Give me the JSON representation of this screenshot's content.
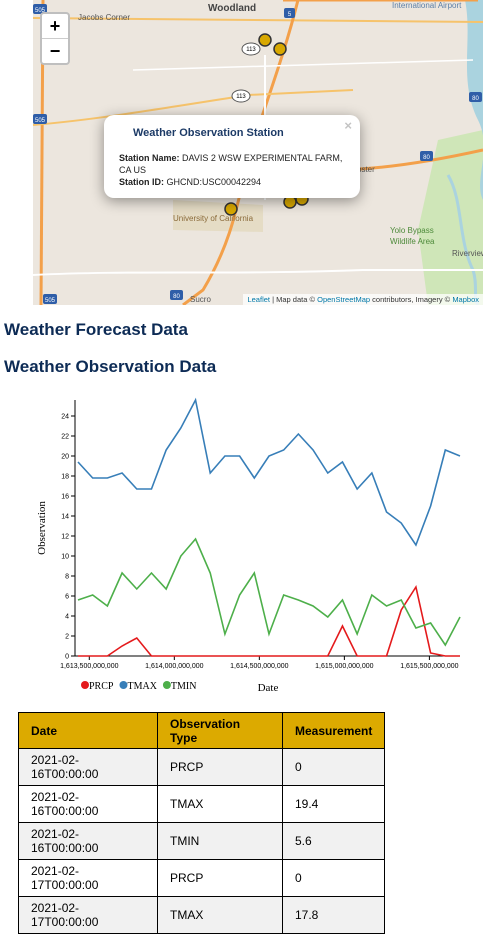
{
  "map": {
    "zoom_in": "+",
    "zoom_out": "−",
    "labels": {
      "woodland": "Woodland",
      "jacobs_corner": "Jacobs Corner",
      "airport": "International Airport",
      "webster": "bster",
      "university": "University of California",
      "yolo1": "Yolo Bypass",
      "yolo2": "Wildlife Area",
      "riverview": "Riverview",
      "sucro": "Sucro",
      "shield_113a": "113",
      "shield_113b": "113",
      "shield_5": "5",
      "shield_80a": "80",
      "shield_80b": "80",
      "shield_80c": "80",
      "shield_505a": "505",
      "shield_505b": "505",
      "shield_505c": "505"
    },
    "popup": {
      "close": "×",
      "title": "Weather Observation Station",
      "station_name_label": "Station Name:",
      "station_name": "DAVIS 2 WSW EXPERIMENTAL FARM, CA US",
      "station_id_label": "Station ID:",
      "station_id": "GHCND:USC00042294"
    },
    "attribution": {
      "leaflet": "Leaflet",
      "text1": "| Map data ©",
      "osm": "OpenStreetMap",
      "text2": "contributors, Imagery ©",
      "mapbox": "Mapbox"
    }
  },
  "headings": {
    "forecast": "Weather Forecast Data",
    "observation": "Weather Observation Data"
  },
  "chart_data": {
    "type": "line",
    "x_label": "Date",
    "y_label": "Observation",
    "x": [
      1613433600000,
      1613520000000,
      1613606400000,
      1613692800000,
      1613779200000,
      1613865600000,
      1613952000000,
      1614038400000,
      1614124800000,
      1614211200000,
      1614297600000,
      1614384000000,
      1614470400000,
      1614556800000,
      1614643200000,
      1614729600000,
      1614816000000,
      1614902400000,
      1614988800000,
      1615075200000,
      1615161600000,
      1615248000000,
      1615334400000,
      1615420800000,
      1615507200000,
      1615593600000,
      1615680000000
    ],
    "xlim": [
      1613433600000,
      1615680000000
    ],
    "xticks": [
      {
        "value": 1613500000000,
        "label": "1,613,500,000,000"
      },
      {
        "value": 1614000000000,
        "label": "1,614,000,000,000"
      },
      {
        "value": 1614500000000,
        "label": "1,614,500,000,000"
      },
      {
        "value": 1615000000000,
        "label": "1,615,000,000,000"
      },
      {
        "value": 1615500000000,
        "label": "1,615,500,000,000"
      }
    ],
    "ylim": [
      0,
      25.6
    ],
    "yticks": [
      0,
      2,
      4,
      6,
      8,
      10,
      12,
      14,
      16,
      18,
      20,
      22,
      24
    ],
    "series": [
      {
        "name": "PRCP",
        "color": "#e41a1c",
        "values": [
          0,
          0,
          0,
          1.0,
          1.8,
          0,
          0,
          0,
          0,
          0,
          0,
          0,
          0,
          0,
          0,
          0,
          0,
          0,
          3.0,
          0,
          0,
          0,
          4.6,
          6.9,
          0.3,
          0,
          0
        ]
      },
      {
        "name": "TMAX",
        "color": "#377eb8",
        "values": [
          19.4,
          17.8,
          17.8,
          18.3,
          16.7,
          16.7,
          20.6,
          22.8,
          25.6,
          18.3,
          20.0,
          20.0,
          17.8,
          20.0,
          20.6,
          22.2,
          20.6,
          18.3,
          19.4,
          16.7,
          18.3,
          14.4,
          13.3,
          11.1,
          15.0,
          20.6,
          20.0
        ]
      },
      {
        "name": "TMIN",
        "color": "#4daf4a",
        "values": [
          5.6,
          6.1,
          5.0,
          8.3,
          6.7,
          8.3,
          6.7,
          10.0,
          11.7,
          8.3,
          2.2,
          6.1,
          8.3,
          2.2,
          6.1,
          5.6,
          5.0,
          3.9,
          5.6,
          2.2,
          6.1,
          5.0,
          5.6,
          2.8,
          3.3,
          1.1,
          3.9
        ]
      }
    ]
  },
  "table": {
    "columns": [
      "Date",
      "Observation Type",
      "Measurement"
    ],
    "rows": [
      [
        "2021-02-16T00:00:00",
        "PRCP",
        0
      ],
      [
        "2021-02-16T00:00:00",
        "TMAX",
        19.4
      ],
      [
        "2021-02-16T00:00:00",
        "TMIN",
        5.6
      ],
      [
        "2021-02-17T00:00:00",
        "PRCP",
        0
      ],
      [
        "2021-02-17T00:00:00",
        "TMAX",
        17.8
      ]
    ]
  }
}
